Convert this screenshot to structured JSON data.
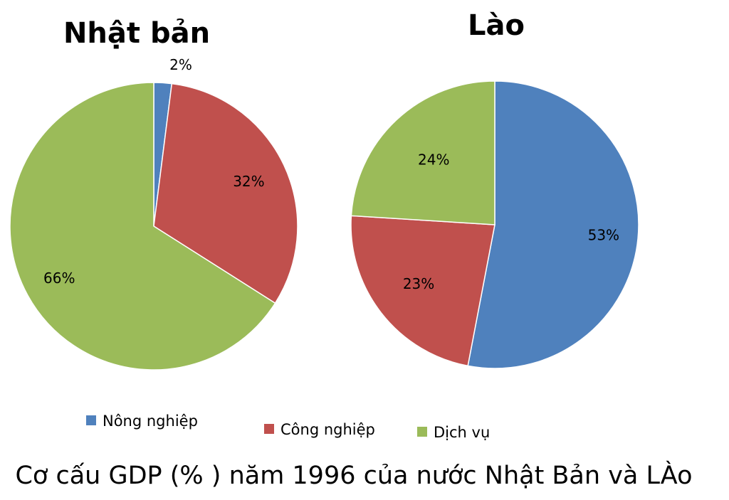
{
  "chart_data": [
    {
      "type": "pie",
      "title": "Nhật bản",
      "categories": [
        "Nông nghiệp",
        "Công nghiệp",
        "Dịch vụ"
      ],
      "values": [
        2,
        32,
        66
      ],
      "value_labels": [
        "2%",
        "32%",
        "66%"
      ],
      "colors": [
        "#4F81BD",
        "#C0504D",
        "#9BBB59"
      ]
    },
    {
      "type": "pie",
      "title": "Lào",
      "categories": [
        "Nông nghiệp",
        "Công nghiệp",
        "Dịch vụ"
      ],
      "values": [
        53,
        23,
        24
      ],
      "value_labels": [
        "53%",
        "23%",
        "24%"
      ],
      "colors": [
        "#4F81BD",
        "#C0504D",
        "#9BBB59"
      ]
    }
  ],
  "legend": {
    "items": [
      {
        "label": "Nông nghiệp",
        "color": "#4F81BD"
      },
      {
        "label": "Công nghiệp",
        "color": "#C0504D"
      },
      {
        "label": "Dịch vụ",
        "color": "#9BBB59"
      }
    ],
    "placement": "bottom"
  },
  "caption": "Cơ cấu GDP (% ) năm 1996 của nước Nhật Bản và LÀo"
}
